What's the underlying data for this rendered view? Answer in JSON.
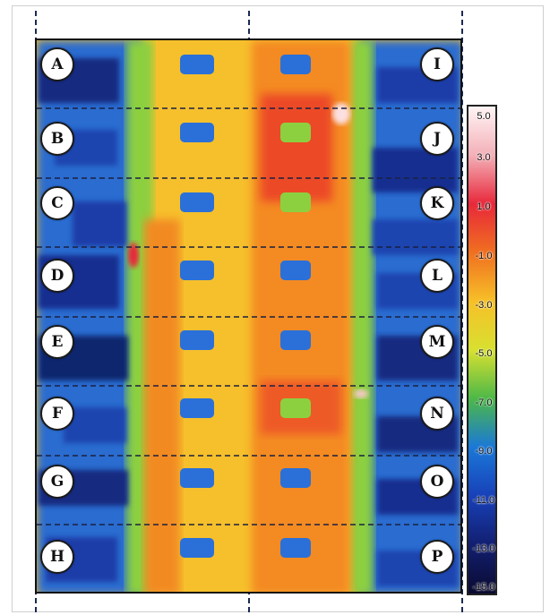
{
  "zones": {
    "left": [
      "A",
      "B",
      "C",
      "D",
      "E",
      "F",
      "G",
      "H"
    ],
    "right": [
      "I",
      "J",
      "K",
      "L",
      "M",
      "N",
      "O",
      "P"
    ]
  },
  "colorbar": {
    "ticks": [
      "5.0",
      "3.0",
      "1.0",
      "-1.0",
      "-3.0",
      "-5.0",
      "-7.0",
      "-9.0",
      "-11.0",
      "-13.0",
      "-15.0"
    ],
    "range": [
      5.0,
      -15.0
    ],
    "colors": [
      "#fff4f4",
      "#f3b0b8",
      "#e8283a",
      "#f07020",
      "#f7c028",
      "#d8e030",
      "#4cb848",
      "#1a78d8",
      "#1840b8",
      "#121f70",
      "#0a0a30"
    ]
  }
}
